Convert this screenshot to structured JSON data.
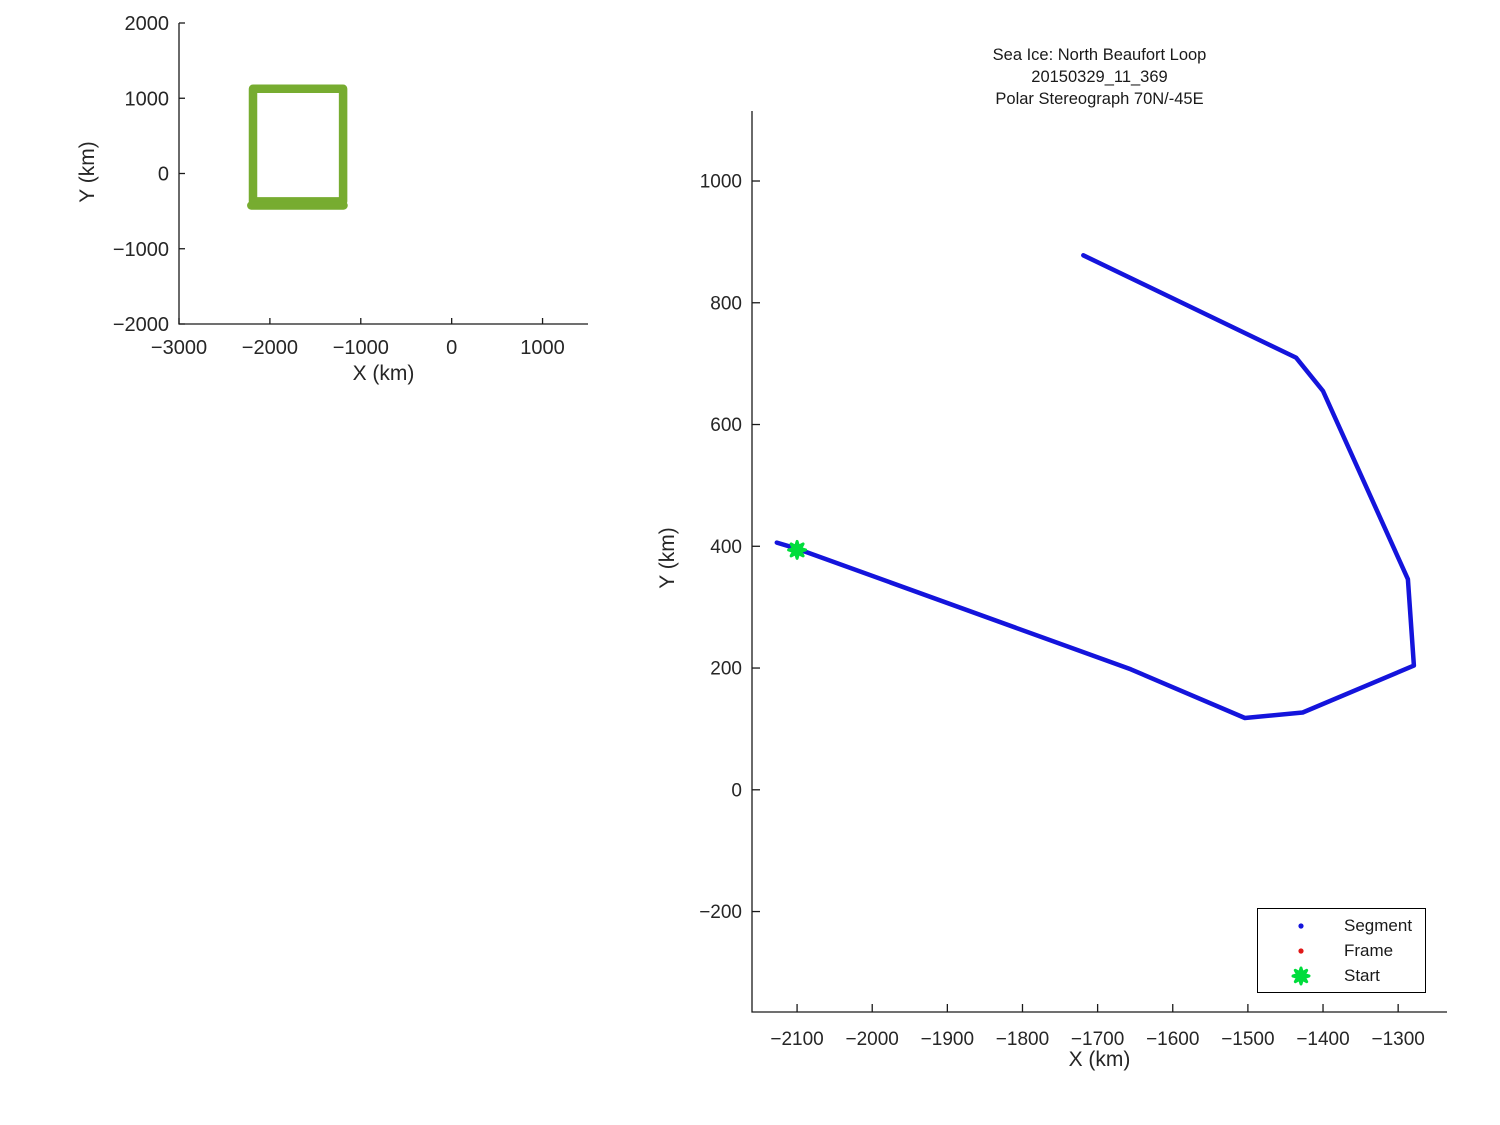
{
  "title": {
    "lines": [
      "Sea Ice: North Beaufort Loop",
      "20150329_11_369",
      "Polar Stereograph 70N/-45E"
    ]
  },
  "legend": {
    "items": [
      {
        "label": "Segment",
        "marker": "dot",
        "color": "#1414dc"
      },
      {
        "label": "Frame",
        "marker": "dot",
        "color": "#e01818"
      },
      {
        "label": "Start",
        "marker": "star",
        "color": "#00dd3c"
      }
    ]
  },
  "colors": {
    "background": "#ffffff",
    "spine": "#1a1a1a",
    "tick_text": "#262626",
    "segment_blue": "#1414dc",
    "loop_green": "#77ac30",
    "start_green": "#00dd3c",
    "frame_red": "#e01818"
  },
  "chart_data": [
    {
      "id": "overview",
      "type": "line",
      "title": "",
      "xlabel": "X (km)",
      "ylabel": "Y (km)",
      "xlim": [
        -3000,
        1500
      ],
      "ylim": [
        -2000,
        2000
      ],
      "xticks": [
        -3000,
        -2000,
        -1000,
        0,
        1000
      ],
      "yticks": [
        -2000,
        -1000,
        0,
        1000,
        2000
      ],
      "grid": false,
      "legend_position": "none",
      "series": [
        {
          "name": "loop-outline",
          "color": "#77ac30",
          "line_width": 8.5,
          "points": [
            [
              -2186,
              1126
            ],
            [
              -1195,
              1126
            ],
            [
              -1195,
              -371
            ],
            [
              -2186,
              -371
            ],
            [
              -2186,
              1126
            ]
          ]
        },
        {
          "name": "loop-closure",
          "color": "#77ac30",
          "line_width": 8.5,
          "points": [
            [
              -2205,
              -425
            ],
            [
              -1190,
              -425
            ]
          ]
        }
      ]
    },
    {
      "id": "track",
      "type": "line",
      "title": "Sea Ice: North Beaufort Loop 20150329_11_369 Polar Stereograph 70N/-45E",
      "xlabel": "X (km)",
      "ylabel": "Y (km)",
      "xlim": [
        -2160,
        -1235
      ],
      "ylim": [
        -365,
        1115
      ],
      "xticks": [
        -2100,
        -2000,
        -1900,
        -1800,
        -1700,
        -1600,
        -1500,
        -1400,
        -1300
      ],
      "yticks": [
        -200,
        0,
        200,
        400,
        600,
        800,
        1000
      ],
      "grid": false,
      "legend_position": "lower right",
      "series": [
        {
          "name": "Segment",
          "color": "#1414dc",
          "line_width": 4.5,
          "points": [
            [
              -2127,
              406
            ],
            [
              -2100,
              396
            ],
            [
              -1656,
              198
            ],
            [
              -1504,
              118
            ],
            [
              -1427,
              127
            ],
            [
              -1279,
              204
            ],
            [
              -1287,
              346
            ],
            [
              -1400,
              655
            ],
            [
              -1436,
              710
            ],
            [
              -1719,
              878
            ]
          ]
        }
      ],
      "markers": [
        {
          "name": "Start",
          "shape": "star",
          "color": "#00dd3c",
          "x": -2100,
          "y": 394,
          "size": 8.5
        }
      ]
    }
  ]
}
